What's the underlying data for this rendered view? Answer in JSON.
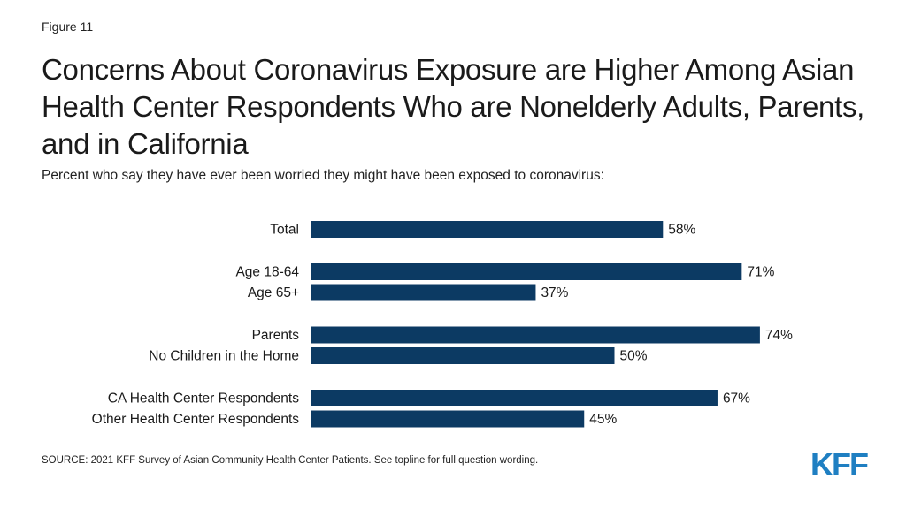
{
  "figure_label": "Figure 11",
  "title": "Concerns About Coronavirus Exposure are Higher Among Asian Health Center Respondents Who are Nonelderly Adults, Parents, and in California",
  "subtitle": "Percent who say they have ever been worried they might have been exposed to coronavirus:",
  "source": "SOURCE: 2021 KFF Survey of Asian Community Health Center Patients. See topline for full question wording.",
  "logo_text": "KFF",
  "colors": {
    "bar": "#0c3a63",
    "logo": "#1f7fc2"
  },
  "chart_data": {
    "type": "bar",
    "orientation": "horizontal",
    "categories": [
      "Total",
      "Age 18-64",
      "Age 65+",
      "Parents",
      "No Children in the Home",
      "CA Health Center Respondents",
      "Other Health Center Respondents"
    ],
    "groups": [
      [
        0
      ],
      [
        1,
        2
      ],
      [
        3,
        4
      ],
      [
        5,
        6
      ]
    ],
    "values": [
      58,
      71,
      37,
      74,
      50,
      67,
      45
    ],
    "value_suffix": "%",
    "xlim": [
      0,
      100
    ],
    "grid": false,
    "legend": "none",
    "xlabel": "",
    "ylabel": ""
  }
}
